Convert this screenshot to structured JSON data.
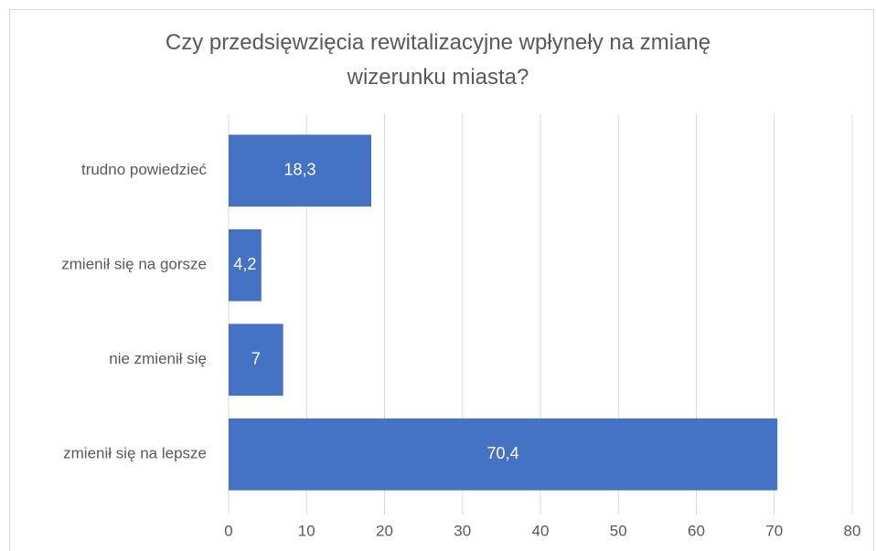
{
  "chart_data": {
    "type": "hbar",
    "title": "Czy przedsięwzięcia rewitalizacyjne wpłyneły na zmianę wizerunku miasta?",
    "categories": [
      "trudno powiedzieć",
      "zmienił się na gorsze",
      "nie zmienił się",
      "zmienił się na lepsze"
    ],
    "values": [
      18.3,
      4.2,
      7,
      70.4
    ],
    "value_labels": [
      "18,3",
      "4,2",
      "7",
      "70,4"
    ],
    "color": "#4472c4",
    "xlim": [
      0,
      80
    ],
    "xticks": [
      0,
      10,
      20,
      30,
      40,
      50,
      60,
      70,
      80
    ],
    "grid": true
  }
}
